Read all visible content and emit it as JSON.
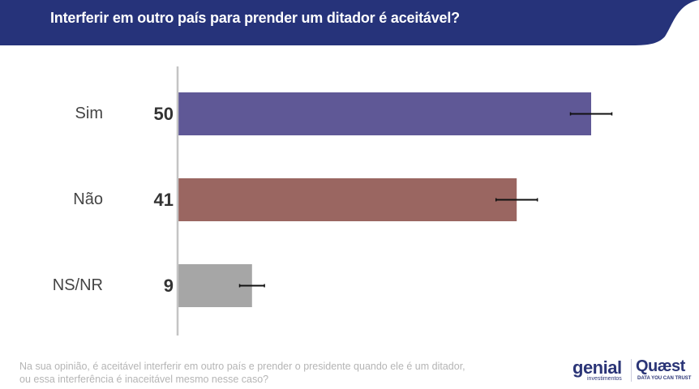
{
  "header": {
    "title": "Interferir em outro país para prender um ditador é aceitável?",
    "color": "#26337a"
  },
  "chart_data": {
    "type": "bar",
    "orientation": "horizontal",
    "categories": [
      "Sim",
      "Não",
      "NS/NR"
    ],
    "values": [
      50,
      41,
      9
    ],
    "value_labels": [
      "50",
      "41",
      "9"
    ],
    "error_margin": [
      2.5,
      2.5,
      1.5
    ],
    "colors": [
      "#5f5896",
      "#9a6661",
      "#a6a6a6"
    ],
    "xlim": [
      0,
      60
    ],
    "grid": false
  },
  "footnote": {
    "line1": "Na sua opinião, é aceitável interferir em outro país e prender o presidente quando ele é um ditador,",
    "line2": "ou essa interferência é inaceitável mesmo nesse caso?"
  },
  "logos": {
    "genial": "genial",
    "genial_sub": "investimentos",
    "quaest": "Quæst",
    "quaest_sub": "DATA YOU CAN TRUST"
  }
}
